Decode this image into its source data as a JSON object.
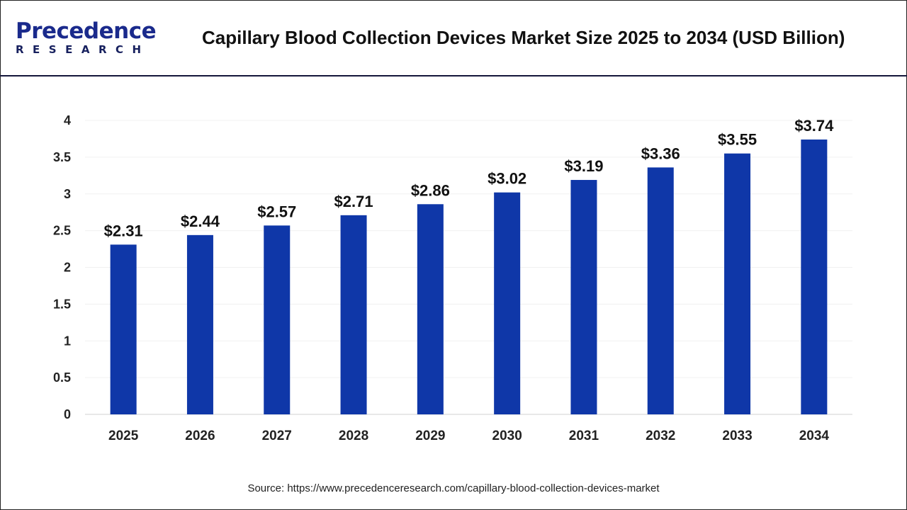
{
  "header": {
    "logo_text_main": "Precedence",
    "logo_text_sub": "RESEARCH",
    "title": "Capillary Blood Collection Devices Market Size 2025 to 2034 (USD Billion)"
  },
  "source": "Source: https://www.precedenceresearch.com/capillary-blood-collection-devices-market",
  "chart_data": {
    "type": "bar",
    "title": "Capillary Blood Collection Devices Market Size 2025 to 2034 (USD Billion)",
    "categories": [
      "2025",
      "2026",
      "2027",
      "2028",
      "2029",
      "2030",
      "2031",
      "2032",
      "2033",
      "2034"
    ],
    "values": [
      2.31,
      2.44,
      2.57,
      2.71,
      2.86,
      3.02,
      3.19,
      3.36,
      3.55,
      3.74
    ],
    "data_labels": [
      "$2.31",
      "$2.44",
      "$2.57",
      "$2.71",
      "$2.86",
      "$3.02",
      "$3.19",
      "$3.36",
      "$3.55",
      "$3.74"
    ],
    "ylim": [
      0,
      4
    ],
    "yticks": [
      "0",
      "0.5",
      "1",
      "1.5",
      "2",
      "2.5",
      "3",
      "3.5",
      "4"
    ],
    "grid": true,
    "xlabel": "",
    "ylabel": "",
    "bar_color": "#0f37a8"
  }
}
